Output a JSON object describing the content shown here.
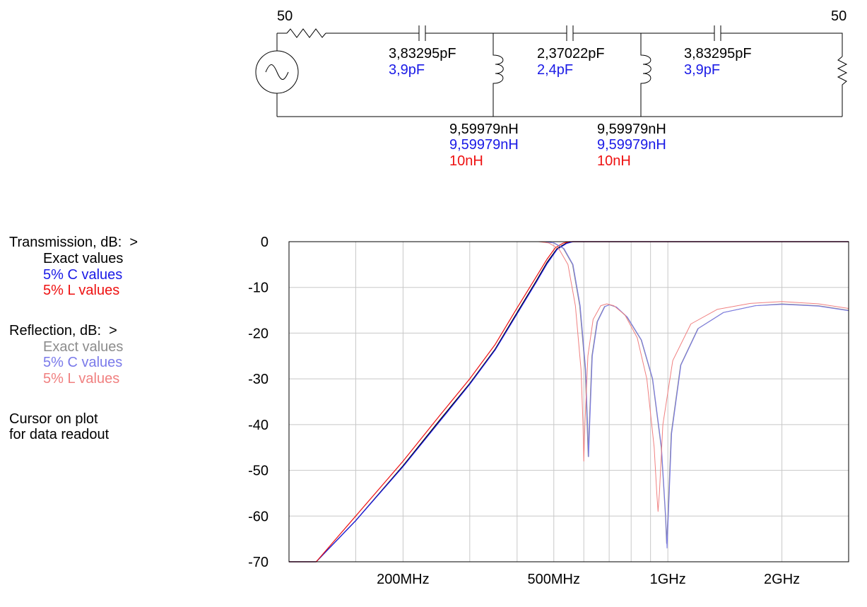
{
  "colors": {
    "exact": "#000000",
    "c5": "#1a1ae6",
    "l5": "#ee1111",
    "refl_exact": "#8c8c8c",
    "refl_c5": "#7a7aea",
    "refl_l5": "#f08080",
    "grid": "#c8c8c8"
  },
  "schematic": {
    "source_impedance": "50",
    "load_impedance": "50",
    "c1": {
      "exact": "3,83295pF",
      "c5": "3,9pF"
    },
    "c2": {
      "exact": "2,37022pF",
      "c5": "2,4pF"
    },
    "c3": {
      "exact": "3,83295pF",
      "c5": "3,9pF"
    },
    "l1": {
      "exact": "9,59979nH",
      "c5": "9,59979nH",
      "l5": "10nH"
    },
    "l2": {
      "exact": "9,59979nH",
      "c5": "9,59979nH",
      "l5": "10nH"
    }
  },
  "legend": {
    "transmission_title": "Transmission, dB:  >",
    "transmission": [
      "Exact values",
      "5% C values",
      "5% L values"
    ],
    "reflection_title": "Reflection, dB:  >",
    "reflection": [
      "Exact values",
      "5% C values",
      "5% L values"
    ],
    "cursor_line1": "Cursor on plot",
    "cursor_line2": "for data readout"
  },
  "chart_data": {
    "type": "line",
    "x_scale": "log",
    "x_unit": "MHz",
    "xlim": [
      100,
      3000
    ],
    "ylim": [
      -70,
      0
    ],
    "grid": true,
    "y_ticks": [
      0,
      -10,
      -20,
      -30,
      -40,
      -50,
      -60,
      -70
    ],
    "x_tick_labels": [
      {
        "value": 200,
        "label": "200MHz"
      },
      {
        "value": 500,
        "label": "500MHz"
      },
      {
        "value": 1000,
        "label": "1GHz"
      },
      {
        "value": 2000,
        "label": "2GHz"
      }
    ],
    "series": [
      {
        "name": "Transmission, Exact values",
        "kind": "transmission",
        "color_key": "exact",
        "points": [
          [
            100,
            -70
          ],
          [
            118,
            -70
          ],
          [
            150,
            -61
          ],
          [
            200,
            -49
          ],
          [
            250,
            -39
          ],
          [
            300,
            -31
          ],
          [
            350,
            -23.5
          ],
          [
            400,
            -15.5
          ],
          [
            450,
            -8.5
          ],
          [
            480,
            -4.5
          ],
          [
            510,
            -1.5
          ],
          [
            540,
            -0.3
          ],
          [
            560,
            0
          ],
          [
            3000,
            0
          ]
        ]
      },
      {
        "name": "Transmission, 5% C values",
        "kind": "transmission",
        "color_key": "c5",
        "points": [
          [
            100,
            -70
          ],
          [
            118,
            -70
          ],
          [
            150,
            -61
          ],
          [
            200,
            -49.2
          ],
          [
            250,
            -39.3
          ],
          [
            300,
            -31.2
          ],
          [
            350,
            -23.7
          ],
          [
            400,
            -15.8
          ],
          [
            450,
            -8.8
          ],
          [
            480,
            -4.8
          ],
          [
            510,
            -1.7
          ],
          [
            540,
            -0.4
          ],
          [
            562,
            0
          ],
          [
            3000,
            0
          ]
        ]
      },
      {
        "name": "Transmission, 5% L values",
        "kind": "transmission",
        "color_key": "l5",
        "points": [
          [
            100,
            -70
          ],
          [
            118,
            -70
          ],
          [
            150,
            -60
          ],
          [
            200,
            -48
          ],
          [
            250,
            -38
          ],
          [
            300,
            -30
          ],
          [
            350,
            -22.5
          ],
          [
            400,
            -14.5
          ],
          [
            450,
            -7.6
          ],
          [
            480,
            -3.8
          ],
          [
            505,
            -1.3
          ],
          [
            530,
            -0.3
          ],
          [
            550,
            0
          ],
          [
            3000,
            0
          ]
        ]
      },
      {
        "name": "Reflection, Exact values",
        "kind": "reflection",
        "color_key": "refl_exact",
        "points": [
          [
            100,
            0
          ],
          [
            470,
            0
          ],
          [
            500,
            -0.3
          ],
          [
            530,
            -1.5
          ],
          [
            560,
            -5
          ],
          [
            585,
            -14
          ],
          [
            605,
            -28
          ],
          [
            612,
            -40
          ],
          [
            616,
            -47
          ],
          [
            620,
            -40
          ],
          [
            630,
            -25
          ],
          [
            650,
            -17.5
          ],
          [
            680,
            -14.2
          ],
          [
            700,
            -13.8
          ],
          [
            730,
            -14.3
          ],
          [
            780,
            -16.5
          ],
          [
            850,
            -21.5
          ],
          [
            910,
            -30
          ],
          [
            960,
            -45
          ],
          [
            985,
            -60
          ],
          [
            992,
            -66
          ],
          [
            1000,
            -60
          ],
          [
            1020,
            -42
          ],
          [
            1080,
            -27
          ],
          [
            1200,
            -19
          ],
          [
            1400,
            -15.5
          ],
          [
            1700,
            -14
          ],
          [
            2000,
            -13.6
          ],
          [
            2500,
            -14
          ],
          [
            3000,
            -15
          ]
        ]
      },
      {
        "name": "Reflection, 5% C values",
        "kind": "reflection",
        "color_key": "refl_c5",
        "points": [
          [
            100,
            0
          ],
          [
            472,
            0
          ],
          [
            502,
            -0.3
          ],
          [
            532,
            -1.5
          ],
          [
            562,
            -5
          ],
          [
            587,
            -14
          ],
          [
            607,
            -28
          ],
          [
            614,
            -40
          ],
          [
            618,
            -47
          ],
          [
            622,
            -40
          ],
          [
            632,
            -25
          ],
          [
            652,
            -17.5
          ],
          [
            682,
            -14.2
          ],
          [
            702,
            -13.8
          ],
          [
            732,
            -14.3
          ],
          [
            782,
            -16.5
          ],
          [
            852,
            -21.5
          ],
          [
            912,
            -30
          ],
          [
            962,
            -45
          ],
          [
            987,
            -60
          ],
          [
            995,
            -67
          ],
          [
            1003,
            -60
          ],
          [
            1023,
            -42
          ],
          [
            1083,
            -27
          ],
          [
            1203,
            -19
          ],
          [
            1403,
            -15.5
          ],
          [
            1703,
            -14
          ],
          [
            2003,
            -13.7
          ],
          [
            2500,
            -14.1
          ],
          [
            3000,
            -15.1
          ]
        ]
      },
      {
        "name": "Reflection, 5% L values",
        "kind": "reflection",
        "color_key": "refl_l5",
        "points": [
          [
            100,
            0
          ],
          [
            455,
            0
          ],
          [
            485,
            -0.3
          ],
          [
            515,
            -1.5
          ],
          [
            545,
            -5
          ],
          [
            570,
            -14
          ],
          [
            590,
            -28
          ],
          [
            597,
            -40
          ],
          [
            600,
            -48
          ],
          [
            604,
            -40
          ],
          [
            615,
            -25
          ],
          [
            635,
            -17
          ],
          [
            665,
            -14
          ],
          [
            690,
            -13.6
          ],
          [
            720,
            -14
          ],
          [
            770,
            -16
          ],
          [
            830,
            -21
          ],
          [
            880,
            -30
          ],
          [
            920,
            -45
          ],
          [
            935,
            -55
          ],
          [
            942,
            -59
          ],
          [
            950,
            -55
          ],
          [
            970,
            -40
          ],
          [
            1030,
            -26
          ],
          [
            1150,
            -18
          ],
          [
            1350,
            -14.8
          ],
          [
            1650,
            -13.5
          ],
          [
            2000,
            -13.1
          ],
          [
            2500,
            -13.6
          ],
          [
            3000,
            -14.6
          ]
        ]
      }
    ]
  }
}
